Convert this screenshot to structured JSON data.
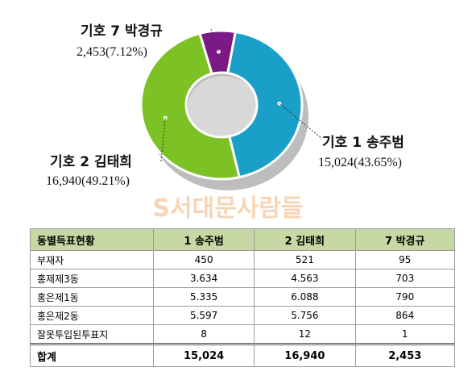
{
  "chart_data": {
    "type": "donut",
    "categories": [
      "기호 1 송주범",
      "기호 2 김태희",
      "기호 7 박경규"
    ],
    "values": [
      15024,
      16940,
      2453
    ],
    "value_labels": [
      "15,024(43.65%)",
      "16,940(49.21%)",
      "2,453(7.12%)"
    ],
    "colors": [
      "#1a9fc9",
      "#7cc225",
      "#7b1a86"
    ]
  },
  "watermark": "S서대문사람들",
  "table": {
    "header": [
      "동별득표현황",
      "1 송주범",
      "2 김태희",
      "7 박경규"
    ],
    "rows": [
      [
        "부재자",
        "450",
        "521",
        "95"
      ],
      [
        "홍제제3동",
        "3.634",
        "4.563",
        "703"
      ],
      [
        "홍은제1동",
        "5.335",
        "6.088",
        "790"
      ],
      [
        "홍은제2동",
        "5.597",
        "5.756",
        "864"
      ],
      [
        "잘못투입된투표지",
        "8",
        "12",
        "1"
      ]
    ],
    "total": [
      "합계",
      "15,024",
      "16,940",
      "2,453"
    ]
  }
}
